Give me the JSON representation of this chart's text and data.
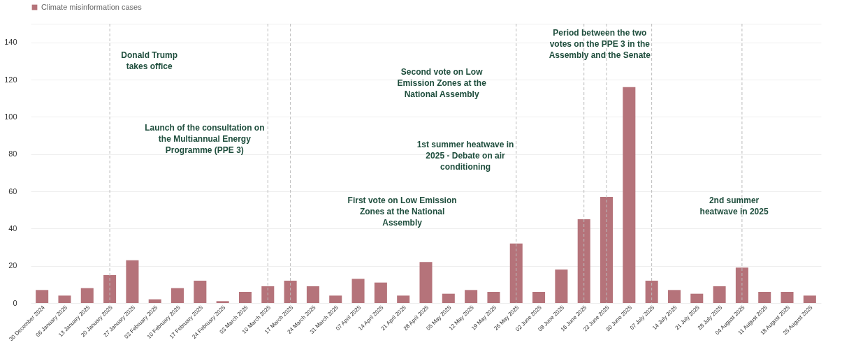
{
  "chart_data": {
    "type": "bar",
    "categories": [
      "30 December 2024",
      "06 January 2025",
      "13 January 2025",
      "20 January 2025",
      "27 January 2025",
      "03 February 2025",
      "10 February 2025",
      "17 February 2025",
      "24 February 2025",
      "03 March 2025",
      "10 March 2025",
      "17 March 2025",
      "24 March 2025",
      "31 March 2025",
      "07 April 2025",
      "14 April 2025",
      "21 April 2025",
      "28 April 2025",
      "05 May 2025",
      "12 May 2025",
      "19 May 2025",
      "26 May 2025",
      "02 June 2025",
      "09 June 2025",
      "16 June 2025",
      "23 June 2025",
      "30 June 2025",
      "07 July 2025",
      "14 July 2025",
      "21 July 2025",
      "28 July 2025",
      "04 August 2025",
      "11 August 2025",
      "18 August 2025",
      "25 August 2025"
    ],
    "series": [
      {
        "name": "Climate misinformation cases",
        "color": "#b5737a",
        "values": [
          7,
          4,
          8,
          15,
          23,
          2,
          8,
          12,
          1,
          6,
          9,
          12,
          9,
          4,
          13,
          11,
          4,
          22,
          5,
          7,
          6,
          32,
          6,
          18,
          45,
          57,
          116,
          12,
          7,
          5,
          9,
          19,
          6,
          6,
          4
        ]
      }
    ],
    "ylim": [
      0,
      150
    ],
    "yticks": [
      0,
      20,
      40,
      60,
      80,
      100,
      120,
      140,
      {
        "value": 150,
        "label": null
      }
    ],
    "grid": "y",
    "legend": "top",
    "ref_lines": [
      {
        "axis": "x",
        "value": "20 January 2025",
        "color": "#bbbbbb",
        "line_style": "dashed"
      },
      {
        "axis": "x",
        "value": "10 March 2025",
        "color": "#bbbbbb",
        "line_style": "dashed"
      },
      {
        "axis": "x",
        "value": "17 March 2025",
        "color": "#bbbbbb",
        "line_style": "dashed"
      },
      {
        "axis": "x",
        "value": "26 May 2025",
        "color": "#bbbbbb",
        "line_style": "dashed"
      },
      {
        "axis": "x",
        "value": "16 June 2025",
        "color": "#bbbbbb",
        "line_style": "dashed"
      },
      {
        "axis": "x",
        "value": "23 June 2025",
        "color": "#bbbbbb",
        "line_style": "dashed"
      },
      {
        "axis": "x",
        "value": "07 July 2025",
        "color": "#bbbbbb",
        "line_style": "dashed"
      },
      {
        "axis": "x",
        "value": "04 August 2025",
        "color": "#bbbbbb",
        "line_style": "dashed"
      }
    ],
    "annotations": [
      "Donald Trump takes office",
      "Launch of the consultation on the Multiannual Energy Programme (PPE 3)",
      "First vote on Low Emission Zones at the National Assembly",
      "Second vote on Low Emission Zones at the National Assembly",
      "1st summer heatwave in 2025 - Debate on air conditioning",
      "Period between the two votes on the PPE 3 in the Assembly and the Senate",
      "2nd summer heatwave in 2025"
    ]
  }
}
